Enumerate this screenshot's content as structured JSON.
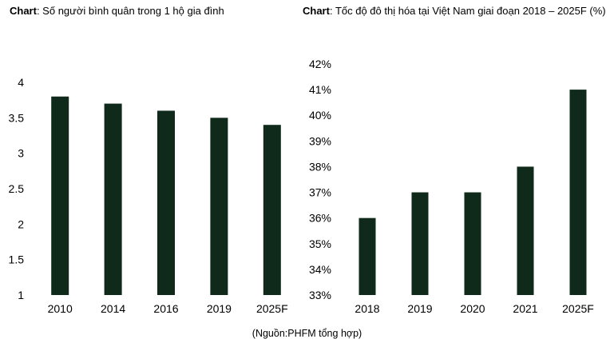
{
  "source_note": "(Nguồn:PHFM tổng hợp)",
  "chart_data": [
    {
      "type": "bar",
      "title_prefix": "Chart",
      "title": ": Số người bình quân trong 1 hộ gia đình",
      "categories": [
        "2010",
        "2014",
        "2016",
        "2019",
        "2025F"
      ],
      "values": [
        3.8,
        3.7,
        3.6,
        3.5,
        3.4
      ],
      "ylim": [
        1,
        4
      ],
      "yticks": [
        "1",
        "1.5",
        "2",
        "2.5",
        "3",
        "3.5",
        "4"
      ],
      "grid": false,
      "color": "#0f2a1a"
    },
    {
      "type": "bar",
      "title_prefix": "Chart",
      "title": ": Tốc độ đô thị hóa tại Việt Nam giai đoạn 2018 – 2025F (%)",
      "categories": [
        "2018",
        "2019",
        "2020",
        "2021",
        "2025F"
      ],
      "values": [
        36,
        37,
        37,
        38,
        41
      ],
      "ylim": [
        33,
        42
      ],
      "yticks": [
        "33%",
        "34%",
        "35%",
        "36%",
        "37%",
        "38%",
        "39%",
        "40%",
        "41%",
        "42%"
      ],
      "grid": false,
      "color": "#0f2a1a"
    }
  ]
}
